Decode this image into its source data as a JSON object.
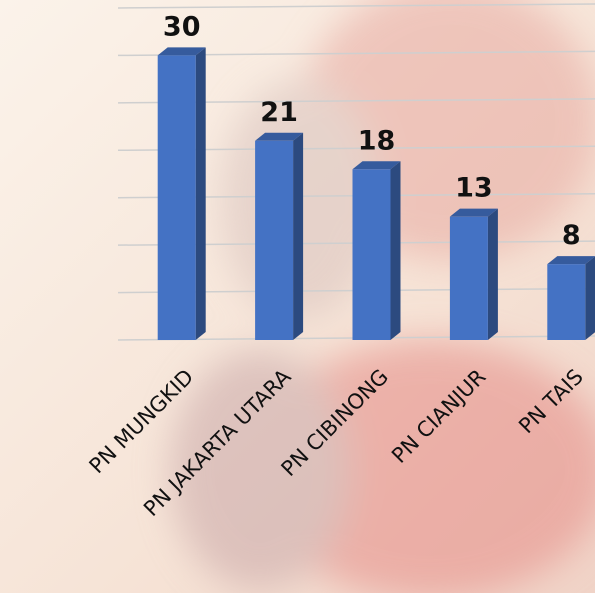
{
  "chart_data": {
    "type": "bar",
    "categories": [
      "PN MUNGKID",
      "PN JAKARTA UTARA",
      "PN CIBINONG",
      "PN CIANJUR",
      "PN TAIS"
    ],
    "values": [
      30,
      21,
      18,
      13,
      8
    ],
    "color": "#4472c4",
    "ylim": [
      0,
      35
    ],
    "yticks": [
      0,
      5,
      10,
      15,
      20,
      25,
      30,
      35
    ],
    "grid": true
  }
}
